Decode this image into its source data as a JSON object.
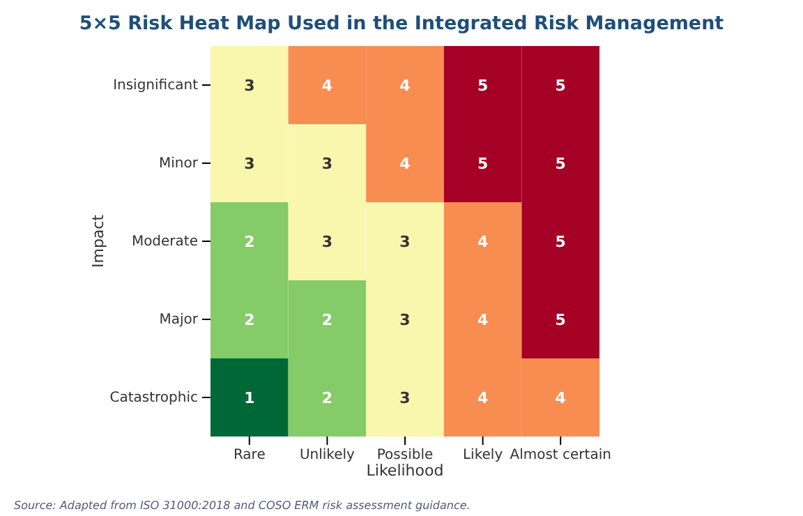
{
  "chart_data": {
    "type": "heatmap",
    "title": "5×5 Risk Heat Map Used in the Integrated Risk Management",
    "xlabel": "Likelihood",
    "ylabel": "Impact",
    "categories": [
      "Rare",
      "Unlikely",
      "Possible",
      "Likely",
      "Almost certain"
    ],
    "y_categories": [
      "Insignificant",
      "Minor",
      "Moderate",
      "Major",
      "Catastrophic"
    ],
    "cells": [
      [
        3,
        4,
        4,
        5,
        5
      ],
      [
        3,
        3,
        4,
        5,
        5
      ],
      [
        2,
        3,
        3,
        4,
        5
      ],
      [
        2,
        2,
        3,
        4,
        5
      ],
      [
        1,
        2,
        3,
        4,
        4
      ]
    ],
    "data_labels": true,
    "annotations": [
      "Source: Adapted from ISO 31000:2018 and COSO ERM risk assessment guidance."
    ]
  }
}
